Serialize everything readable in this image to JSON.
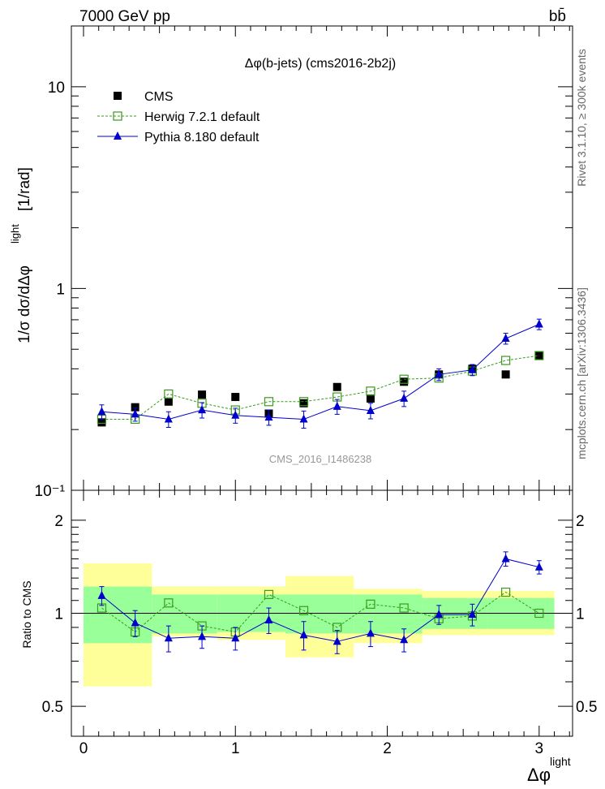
{
  "header": {
    "energy_label": "7000 GeV pp",
    "process_label": "bb̄"
  },
  "side_labels": {
    "rivet": "Rivet 3.1.10, ≥ 300k events",
    "mcplots": "mcplots.cern.ch [arXiv:1306.3436]"
  },
  "chart_data": [
    {
      "type": "scatter",
      "title": "Δφ(b-jets) (cms2016-2b2j)",
      "watermark": "CMS_2016_I1486238",
      "ylabel": "1/σ dσ/dΔφ^light [1/rad]",
      "ylabel_main": "1/σ dσ/dΔφ",
      "ylabel_sup": "light",
      "ylabel_unit": "[1/rad]",
      "xlabel": "Δφ",
      "xlabel_sup": "light",
      "yscale": "log",
      "ylim": [
        0.1,
        20
      ],
      "xlim": [
        -0.08,
        3.22
      ],
      "y_ticks": [
        {
          "value": 0.1,
          "label": "10⁻¹"
        },
        {
          "value": 1,
          "label": "1"
        },
        {
          "value": 10,
          "label": "10"
        }
      ],
      "legend_position": "top-left",
      "series": [
        {
          "name": "CMS",
          "style": "data",
          "color": "#000000",
          "x": [
            0.12,
            0.34,
            0.56,
            0.78,
            1.0,
            1.22,
            1.45,
            1.67,
            1.89,
            2.11,
            2.34,
            2.56,
            2.78,
            3.0
          ],
          "y": [
            0.217,
            0.258,
            0.275,
            0.298,
            0.29,
            0.24,
            0.27,
            0.325,
            0.285,
            0.345,
            0.375,
            0.4,
            0.375,
            0.465
          ]
        },
        {
          "name": "Herwig 7.2.1 default",
          "style": "mc-dashed-square",
          "color": "#3a9a1c",
          "x": [
            0.12,
            0.34,
            0.56,
            0.78,
            1.0,
            1.22,
            1.45,
            1.67,
            1.89,
            2.11,
            2.34,
            2.56,
            2.78,
            3.0
          ],
          "y": [
            0.225,
            0.225,
            0.3,
            0.27,
            0.25,
            0.275,
            0.275,
            0.29,
            0.31,
            0.355,
            0.36,
            0.39,
            0.44,
            0.465
          ]
        },
        {
          "name": "Pythia 8.180 default",
          "style": "mc-solid-triangle",
          "color": "#0000cc",
          "x": [
            0.12,
            0.34,
            0.56,
            0.78,
            1.0,
            1.22,
            1.45,
            1.67,
            1.89,
            2.11,
            2.34,
            2.56,
            2.78,
            3.0
          ],
          "y": [
            0.245,
            0.238,
            0.225,
            0.25,
            0.235,
            0.23,
            0.225,
            0.26,
            0.248,
            0.285,
            0.375,
            0.395,
            0.565,
            0.665
          ],
          "err": [
            0.02,
            0.018,
            0.02,
            0.022,
            0.02,
            0.02,
            0.022,
            0.022,
            0.022,
            0.025,
            0.025,
            0.025,
            0.035,
            0.04
          ]
        }
      ]
    },
    {
      "type": "scatter",
      "ylabel": "Ratio to CMS",
      "xlabel": "Δφ",
      "xlabel_sup": "light",
      "yscale": "log",
      "ylim": [
        0.4,
        2.5
      ],
      "xlim": [
        -0.08,
        3.22
      ],
      "x_ticks": [
        {
          "value": 0,
          "label": "0"
        },
        {
          "value": 1,
          "label": "1"
        },
        {
          "value": 2,
          "label": "2"
        },
        {
          "value": 3,
          "label": "3"
        }
      ],
      "y_ticks": [
        {
          "value": 0.5,
          "label": "0.5"
        },
        {
          "value": 1,
          "label": "1"
        },
        {
          "value": 2,
          "label": "2"
        }
      ],
      "uncertainty_bands": {
        "bins": [
          [
            0.0,
            0.45
          ],
          [
            0.45,
            0.88
          ],
          [
            0.88,
            1.33
          ],
          [
            1.33,
            1.78
          ],
          [
            1.78,
            2.23
          ],
          [
            2.23,
            2.66
          ],
          [
            2.66,
            3.1
          ]
        ],
        "stat": [
          [
            0.8,
            1.22
          ],
          [
            0.86,
            1.15
          ],
          [
            0.87,
            1.15
          ],
          [
            0.86,
            1.15
          ],
          [
            0.86,
            1.15
          ],
          [
            0.89,
            1.12
          ],
          [
            0.89,
            1.12
          ]
        ],
        "total": [
          [
            0.58,
            1.45
          ],
          [
            0.84,
            1.22
          ],
          [
            0.82,
            1.22
          ],
          [
            0.72,
            1.32
          ],
          [
            0.8,
            1.2
          ],
          [
            0.85,
            1.18
          ],
          [
            0.85,
            1.18
          ]
        ],
        "stat_color": "#99ff99",
        "total_color": "#ffff99"
      },
      "series": [
        {
          "name": "Herwig 7.2.1 default",
          "style": "mc-dashed-square",
          "color": "#3a9a1c",
          "x": [
            0.12,
            0.34,
            0.56,
            0.78,
            1.0,
            1.22,
            1.45,
            1.67,
            1.89,
            2.11,
            2.34,
            2.56,
            2.78,
            3.0
          ],
          "y": [
            1.04,
            0.87,
            1.08,
            0.91,
            0.87,
            1.15,
            1.02,
            0.9,
            1.07,
            1.04,
            0.96,
            0.98,
            1.17,
            1.0
          ]
        },
        {
          "name": "Pythia 8.180 default",
          "style": "mc-solid-triangle",
          "color": "#0000cc",
          "x": [
            0.12,
            0.34,
            0.56,
            0.78,
            1.0,
            1.22,
            1.45,
            1.67,
            1.89,
            2.11,
            2.34,
            2.56,
            2.78,
            3.0
          ],
          "y": [
            1.14,
            0.93,
            0.83,
            0.84,
            0.83,
            0.95,
            0.85,
            0.81,
            0.86,
            0.82,
            0.99,
            0.99,
            1.5,
            1.41
          ],
          "err": [
            0.08,
            0.09,
            0.08,
            0.07,
            0.07,
            0.09,
            0.09,
            0.07,
            0.08,
            0.07,
            0.07,
            0.08,
            0.08,
            0.07
          ]
        }
      ]
    }
  ]
}
